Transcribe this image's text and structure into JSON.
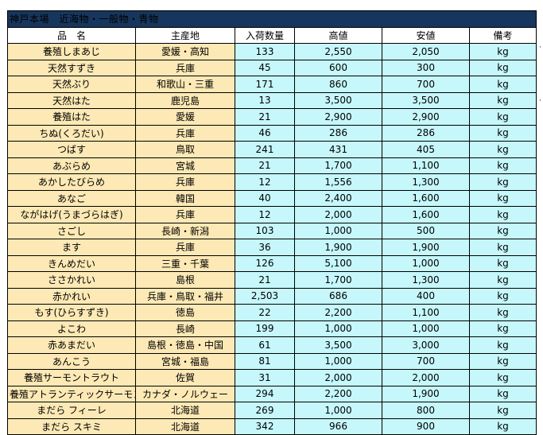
{
  "title": "神戸本場　近海物・一般物・青物",
  "columns": [
    "品　名",
    "主産地",
    "入荷数量",
    "高値",
    "安値",
    "備考"
  ],
  "rows": [
    {
      "name": "養殖しまあじ",
      "origin": "愛媛・高知",
      "qty": "133",
      "high": "2,550",
      "low": "2,050",
      "unit": "kg"
    },
    {
      "name": "天然すずき",
      "origin": "兵庫",
      "qty": "45",
      "high": "600",
      "low": "300",
      "unit": "kg"
    },
    {
      "name": "天然ぶり",
      "origin": "和歌山・三重",
      "qty": "171",
      "high": "860",
      "low": "700",
      "unit": "kg"
    },
    {
      "name": "天然はた",
      "origin": "鹿児島",
      "qty": "13",
      "high": "3,500",
      "low": "3,500",
      "unit": "kg"
    },
    {
      "name": "養殖はた",
      "origin": "愛媛",
      "qty": "21",
      "high": "2,900",
      "low": "2,900",
      "unit": "kg"
    },
    {
      "name": "ちぬ(くろだい)",
      "origin": "兵庫",
      "qty": "46",
      "high": "286",
      "low": "286",
      "unit": "kg"
    },
    {
      "name": "つばす",
      "origin": "鳥取",
      "qty": "241",
      "high": "431",
      "low": "405",
      "unit": "kg"
    },
    {
      "name": "あぶらめ",
      "origin": "宮城",
      "qty": "21",
      "high": "1,700",
      "low": "1,100",
      "unit": "kg"
    },
    {
      "name": "あかしたびらめ",
      "origin": "兵庫",
      "qty": "12",
      "high": "1,556",
      "low": "1,300",
      "unit": "kg"
    },
    {
      "name": "あなご",
      "origin": "韓国",
      "qty": "40",
      "high": "2,400",
      "low": "1,600",
      "unit": "kg"
    },
    {
      "name": "ながはげ(うまづらはぎ)",
      "origin": "兵庫",
      "qty": "12",
      "high": "2,000",
      "low": "1,600",
      "unit": "kg"
    },
    {
      "name": "さごし",
      "origin": "長崎・新潟",
      "qty": "103",
      "high": "1,000",
      "low": "500",
      "unit": "kg"
    },
    {
      "name": "ます",
      "origin": "兵庫",
      "qty": "36",
      "high": "1,900",
      "low": "1,900",
      "unit": "kg"
    },
    {
      "name": "きんめだい",
      "origin": "三重・千葉",
      "qty": "126",
      "high": "5,100",
      "low": "1,000",
      "unit": "kg"
    },
    {
      "name": "ささかれい",
      "origin": "島根",
      "qty": "21",
      "high": "1,700",
      "low": "1,300",
      "unit": "kg"
    },
    {
      "name": "赤かれい",
      "origin": "兵庫・鳥取・福井",
      "qty": "2,503",
      "high": "686",
      "low": "400",
      "unit": "kg"
    },
    {
      "name": "もす(ひらすずき)",
      "origin": "徳島",
      "qty": "22",
      "high": "2,200",
      "low": "1,100",
      "unit": "kg"
    },
    {
      "name": "よこわ",
      "origin": "長崎",
      "qty": "199",
      "high": "1,000",
      "low": "1,000",
      "unit": "kg"
    },
    {
      "name": "赤あまだい",
      "origin": "島根・徳島・中国",
      "qty": "61",
      "high": "3,500",
      "low": "3,000",
      "unit": "kg"
    },
    {
      "name": "あんこう",
      "origin": "宮城・福島",
      "qty": "81",
      "high": "1,000",
      "low": "700",
      "unit": "kg"
    },
    {
      "name": "養殖サーモントラウト",
      "origin": "佐賀",
      "qty": "31",
      "high": "2,000",
      "low": "2,000",
      "unit": "kg"
    },
    {
      "name": "養殖アトランティックサーモン",
      "origin": "カナダ・ノルウェー",
      "qty": "294",
      "high": "2,200",
      "low": "1,900",
      "unit": "kg"
    },
    {
      "name": "まだら フィーレ",
      "origin": "北海道",
      "qty": "269",
      "high": "1,000",
      "low": "800",
      "unit": "kg"
    },
    {
      "name": "まだら スキミ",
      "origin": "北海道",
      "qty": "342",
      "high": "966",
      "low": "900",
      "unit": "kg"
    }
  ],
  "colors": {
    "title_bg": "#17365D",
    "name_bg": "#FDE9B5",
    "value_bg": "#C6F7FB"
  }
}
